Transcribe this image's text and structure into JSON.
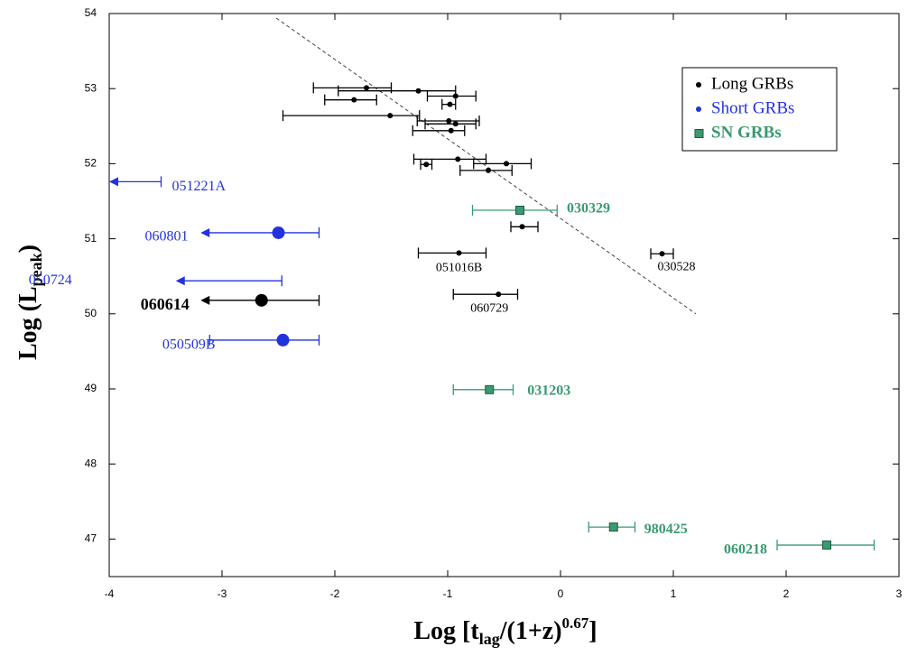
{
  "chart_data": {
    "type": "scatter",
    "xlabel": {
      "main": "Log [t",
      "sub": "lag",
      "rest": "/(1+z)",
      "sup": "0.67",
      "end": "]"
    },
    "ylabel": {
      "main": "Log (L",
      "sub": "peak",
      "end": ")"
    },
    "xlim": [
      -4,
      3
    ],
    "ylim": [
      46.5,
      54
    ],
    "xticks": [
      -4,
      -3,
      -2,
      -1,
      0,
      1,
      2,
      3
    ],
    "yticks": [
      47,
      48,
      49,
      50,
      51,
      52,
      53,
      54
    ],
    "legend": "upper right",
    "fit_line": {
      "x": [
        -2.52,
        1.2
      ],
      "y": [
        53.94,
        50.0
      ]
    },
    "series": [
      {
        "name": "Long GRBs",
        "color": "#000000",
        "marker": "circle",
        "x": [
          -1.72,
          -1.26,
          -0.93,
          -0.98,
          -1.83,
          -1.51,
          -0.99,
          -0.93,
          -0.97,
          -0.91,
          -0.48,
          -1.19,
          -0.64,
          -0.34,
          -0.9,
          0.9,
          -0.55
        ],
        "values": [
          53.01,
          52.97,
          52.9,
          52.79,
          52.85,
          52.64,
          52.57,
          52.53,
          52.44,
          52.06,
          52.0,
          51.99,
          51.91,
          51.16,
          50.81,
          50.8,
          50.26
        ],
        "xmin": [
          -2.19,
          -1.97,
          -1.18,
          -1.05,
          -2.09,
          -2.46,
          -1.27,
          -1.2,
          -1.31,
          -1.3,
          -0.77,
          -1.24,
          -0.89,
          -0.44,
          -1.26,
          0.8,
          -0.95
        ],
        "xmax": [
          -1.5,
          -0.93,
          -0.75,
          -0.93,
          -1.63,
          -1.25,
          -0.72,
          -0.75,
          -0.85,
          -0.66,
          -0.26,
          -1.14,
          -0.43,
          -0.2,
          -0.66,
          1.0,
          -0.38
        ],
        "labels": [
          null,
          null,
          null,
          null,
          null,
          null,
          null,
          null,
          null,
          null,
          null,
          null,
          null,
          null,
          "051016B",
          "030528",
          "060729"
        ]
      },
      {
        "name": "Short GRBs",
        "color": "#2233dd",
        "marker": "circle",
        "colors": [
          "#2233dd",
          "#2233dd",
          "#2233dd",
          "#000000",
          "#2233dd"
        ],
        "x": [
          null,
          -2.5,
          null,
          -2.65,
          -2.46
        ],
        "values": [
          51.76,
          51.08,
          50.44,
          50.18,
          49.65
        ],
        "xmin": [
          -4,
          -3.19,
          -3.41,
          -3.19,
          -3.11
        ],
        "xmax": [
          -3.54,
          -2.14,
          -2.47,
          -2.14,
          -2.14
        ],
        "upper_limit": [
          true,
          true,
          true,
          true,
          false
        ],
        "labels": [
          "051221A",
          "060801",
          "050724",
          "060614",
          "050509B"
        ]
      },
      {
        "name": "SN GRBs",
        "color": "#3a9a70",
        "marker": "square",
        "x": [
          -0.36,
          -0.63,
          0.47,
          2.36
        ],
        "values": [
          51.38,
          48.99,
          47.16,
          46.92
        ],
        "xmin": [
          -0.78,
          -0.95,
          0.25,
          1.92
        ],
        "xmax": [
          -0.03,
          -0.42,
          0.66,
          2.78
        ],
        "labels": [
          "030329",
          "031203",
          "980425",
          "060218"
        ]
      }
    ]
  }
}
